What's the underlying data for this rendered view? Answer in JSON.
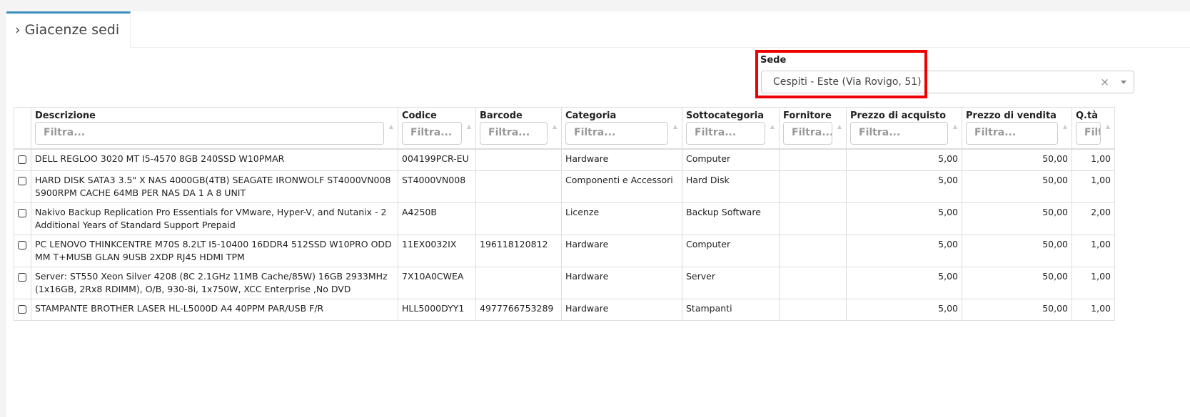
{
  "tab": {
    "title": "Giacenze sedi"
  },
  "sede": {
    "label": "Sede",
    "value": "Cespiti - Este (Via Rovigo, 51)",
    "clear": "×"
  },
  "table": {
    "filter_placeholder": "Filtra...",
    "columns": [
      "Descrizione",
      "Codice",
      "Barcode",
      "Categoria",
      "Sottocategoria",
      "Fornitore",
      "Prezzo di acquisto",
      "Prezzo di vendita",
      "Q.tà"
    ],
    "rows": [
      [
        "DELL REGLOO 3020 MT I5-4570 8GB 240SSD W10PMAR",
        "004199PCR-EU",
        "",
        "Hardware",
        "Computer",
        "",
        "5,00",
        "50,00",
        "1,00"
      ],
      [
        "HARD DISK SATA3 3.5\" X NAS 4000GB(4TB) SEAGATE IRONWOLF ST4000VN008 5900RPM CACHE 64MB PER NAS DA 1 A 8 UNIT",
        "ST4000VN008",
        "",
        "Componenti e Accessori",
        "Hard Disk",
        "",
        "5,00",
        "50,00",
        "1,00"
      ],
      [
        "Nakivo Backup Replication Pro Essentials for VMware, Hyper-V, and Nutanix - 2 Additional Years of Standard Support Prepaid",
        "A4250B",
        "",
        "Licenze",
        "Backup Software",
        "",
        "5,00",
        "50,00",
        "2,00"
      ],
      [
        "PC LENOVO THINKCENTRE M70S 8.2LT I5-10400 16DDR4 512SSD W10PRO ODD MM T+MUSB GLAN 9USB 2XDP RJ45 HDMI TPM",
        "11EX0032IX",
        "196118120812",
        "Hardware",
        "Computer",
        "",
        "5,00",
        "50,00",
        "1,00"
      ],
      [
        "Server: ST550 Xeon Silver 4208 (8C 2.1GHz 11MB Cache/85W) 16GB 2933MHz (1x16GB, 2Rx8 RDIMM), O/B, 930-8i, 1x750W, XCC Enterprise ,No DVD",
        "7X10A0CWEA",
        "",
        "Hardware",
        "Server",
        "",
        "5,00",
        "50,00",
        "1,00"
      ],
      [
        "STAMPANTE BROTHER LASER HL-L5000D A4 40PPM PAR/USB F/R",
        "HLL5000DYY1",
        "4977766753289",
        "Hardware",
        "Stampanti",
        "",
        "5,00",
        "50,00",
        "1,00"
      ]
    ]
  },
  "colors": {
    "tab_accent": "#3c8dbc",
    "highlight": "#e00000"
  }
}
